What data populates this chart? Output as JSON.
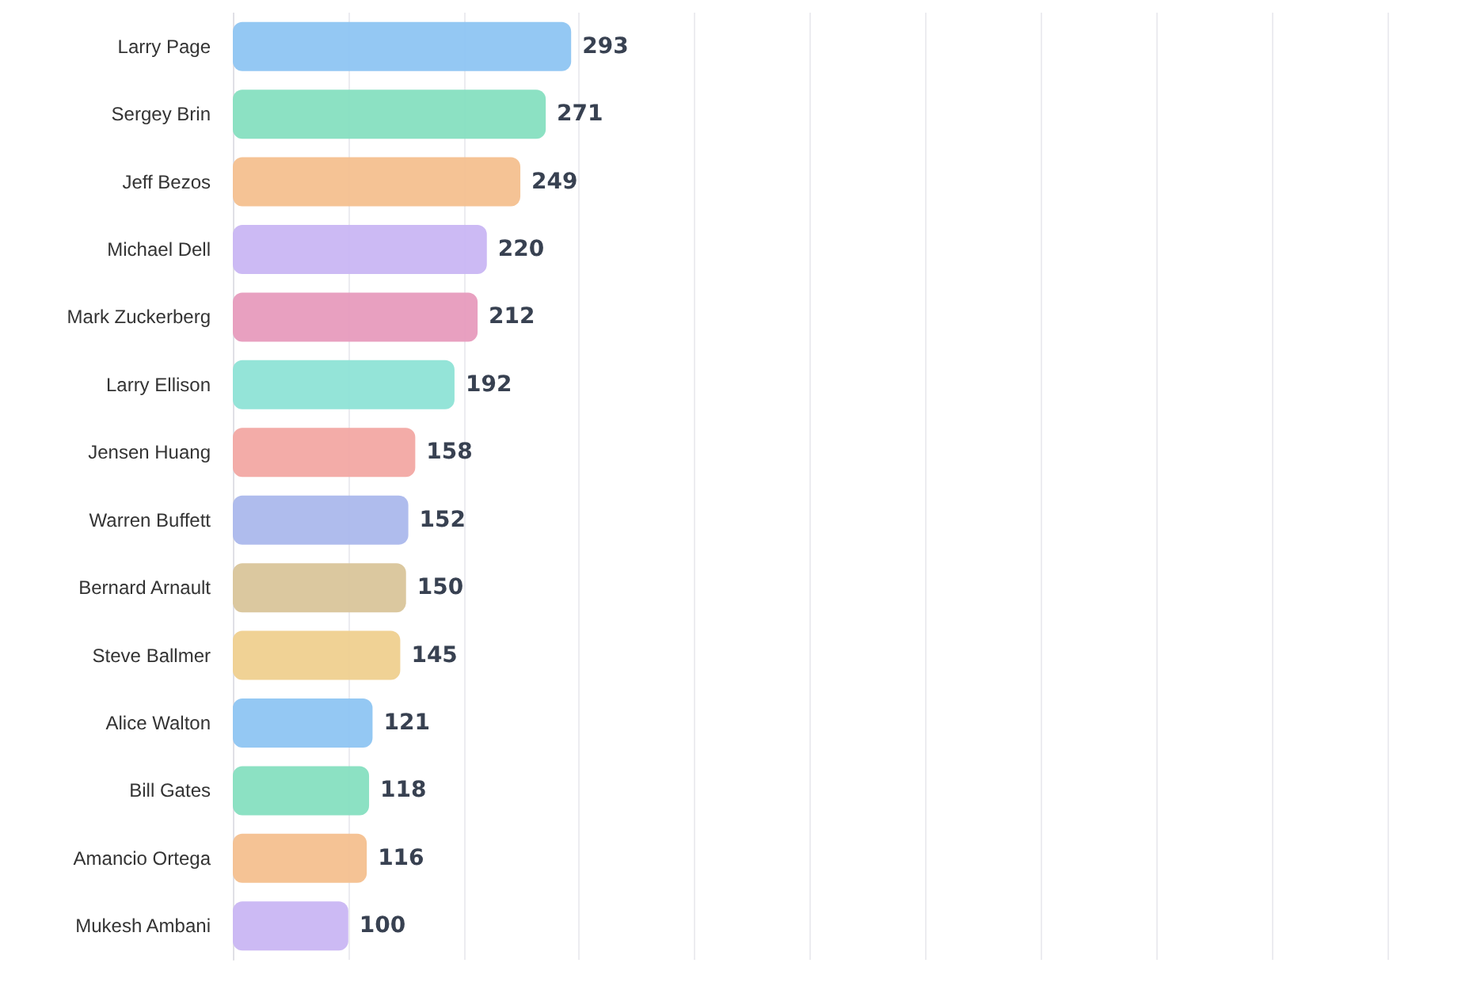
{
  "chart_data": {
    "type": "bar",
    "orientation": "horizontal",
    "categories": [
      "Larry Page",
      "Sergey Brin",
      "Jeff Bezos",
      "Michael Dell",
      "Mark Zuckerberg",
      "Larry Ellison",
      "Jensen Huang",
      "Warren Buffett",
      "Bernard Arnault",
      "Steve Ballmer",
      "Alice Walton",
      "Bill Gates",
      "Amancio Ortega",
      "Mukesh Ambani"
    ],
    "values": [
      293,
      271,
      249,
      220,
      212,
      192,
      158,
      152,
      150,
      145,
      121,
      118,
      116,
      100
    ],
    "colors": [
      "#8ec5f2",
      "#86dfc0",
      "#f4c08f",
      "#c9b6f3",
      "#e79bbd",
      "#8ee3d6",
      "#f2a8a3",
      "#abb8ec",
      "#d9c59a",
      "#efd08f",
      "#8ec5f2",
      "#86dfc0",
      "#f4c08f",
      "#c9b6f3"
    ],
    "data_labels": true,
    "grid": "x",
    "tick_labels": "y",
    "xlim": [
      0,
      1000
    ],
    "xticks": [
      {
        "value": 0,
        "label": null
      },
      {
        "value": 100,
        "label": null
      },
      {
        "value": 200,
        "label": null
      },
      {
        "value": 300,
        "label": null
      },
      {
        "value": 400,
        "label": null
      },
      {
        "value": 500,
        "label": null
      },
      {
        "value": 600,
        "label": null
      },
      {
        "value": 700,
        "label": null
      },
      {
        "value": 800,
        "label": null
      },
      {
        "value": 900,
        "label": null
      },
      {
        "value": 1000,
        "label": null
      }
    ]
  }
}
